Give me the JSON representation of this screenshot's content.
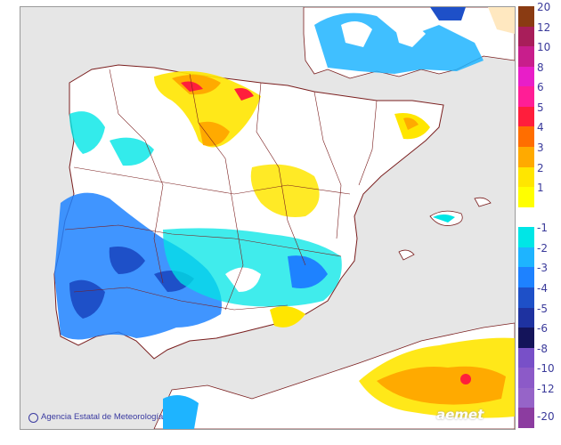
{
  "credit": "Agencia Estatal de Meteorología",
  "logo": "aemet",
  "legend": {
    "ticks": [
      "20",
      "12",
      "10",
      "8",
      "6",
      "5",
      "4",
      "3",
      "2",
      "1",
      "-1",
      "-2",
      "-3",
      "-4",
      "-5",
      "-6",
      "-8",
      "-10",
      "-12",
      "-20"
    ],
    "colors": [
      "#8a3b12",
      "#a81e5a",
      "#c81e8c",
      "#e81ec8",
      "#ff1e96",
      "#ff1e3c",
      "#ff6e00",
      "#ffaa00",
      "#ffe600",
      "#ffff00",
      "#ffffff",
      "#00e6e6",
      "#1eb4ff",
      "#1e82ff",
      "#1e50c8",
      "#1e32a0",
      "#14145a",
      "#7850c8",
      "#8c5ac8",
      "#9664c8",
      "#8c3ca0"
    ]
  },
  "palette": {
    "sea": "#e6e6e6",
    "land": "#ffffff",
    "border": "#7a1e1e",
    "coast": "#7a1e1e"
  }
}
